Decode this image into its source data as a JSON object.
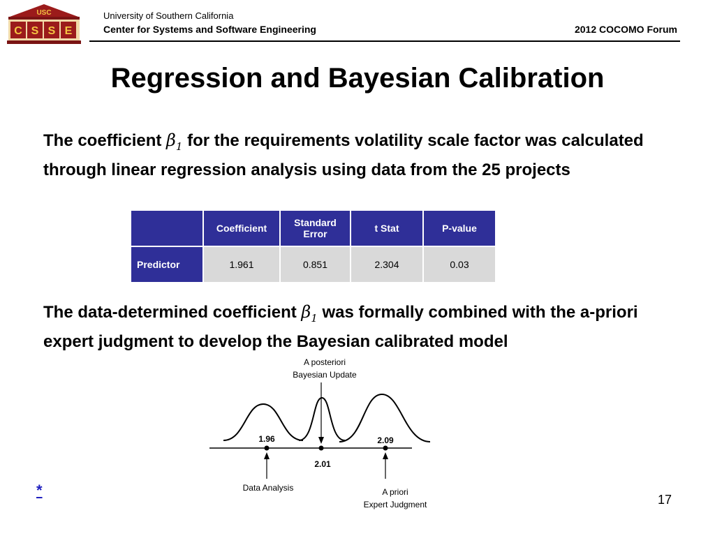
{
  "header": {
    "logo_text": "USC",
    "logo_letters": [
      "C",
      "S",
      "S",
      "E"
    ],
    "university": "University of Southern California",
    "center": "Center for Systems and Software Engineering",
    "forum": "2012 COCOMO Forum"
  },
  "slide": {
    "title": "Regression and Bayesian Calibration",
    "para1": {
      "before": "The coefficient ",
      "beta": "β",
      "beta_sub": "1",
      "after": " for the requirements volatility scale factor was calculated through linear regression analysis using data from the 25 projects"
    },
    "para2": {
      "before": "The data-determined coefficient ",
      "beta": "β",
      "beta_sub": "1",
      "after": " was formally combined with the a-priori expert judgment to develop the Bayesian calibrated model"
    },
    "page_number": "17",
    "footnote_link": "*"
  },
  "table": {
    "headers": [
      "Coefficient",
      "Standard Error",
      "t Stat",
      "P-value"
    ],
    "row_label": "Predictor",
    "row_values": [
      "1.961",
      "0.851",
      "2.304",
      "0.03"
    ]
  },
  "diagram": {
    "posterior_label_1": "A posteriori",
    "posterior_label_2": "Bayesian Update",
    "data_value": "1.96",
    "posterior_value": "2.01",
    "prior_value": "2.09",
    "data_label": "Data Analysis",
    "prior_label_1": "A priori",
    "prior_label_2": "Expert Judgment"
  }
}
